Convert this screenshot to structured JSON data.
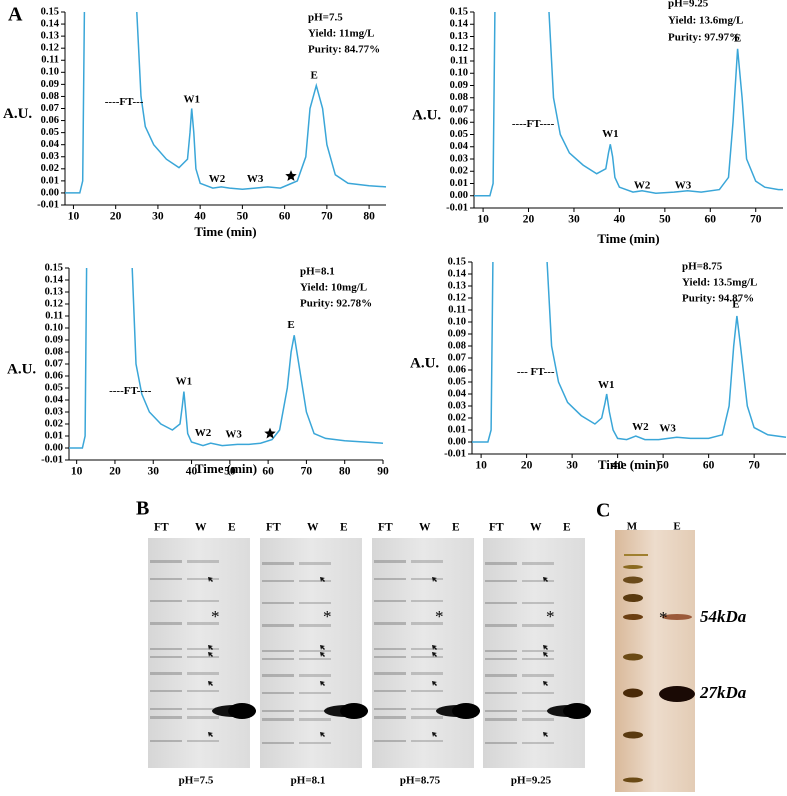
{
  "panel_A": {
    "label": "A"
  },
  "chart_data": [
    {
      "type": "line",
      "y_label": "A.U.",
      "x_label": "Time (min)",
      "info": [
        "pH=7.5",
        "Yield: 11mg/L",
        "Purity: 84.77%"
      ],
      "peak_labels": [
        "----FT---",
        "W1",
        "W2",
        "W3",
        "E"
      ],
      "xlim": [
        8,
        84
      ],
      "xticks": [
        10,
        20,
        30,
        40,
        50,
        60,
        70,
        80
      ],
      "ylim": [
        -0.01,
        0.15
      ],
      "yticks": [
        -0.01,
        {
          "value": 0,
          "label": "0.00"
        },
        0.01,
        0.02,
        0.03,
        0.04,
        0.05,
        0.06,
        0.07,
        0.08,
        0.09,
        {
          "value": 0.1,
          "label": "0.10"
        },
        0.11,
        0.12,
        0.13,
        0.14,
        0.15
      ],
      "x": [
        8,
        11.5,
        12.2,
        12.6,
        18,
        25,
        26,
        27,
        29,
        32,
        35,
        37,
        37.6,
        38,
        38.5,
        39,
        40,
        43,
        45,
        47,
        50,
        53,
        56,
        59,
        61,
        63,
        65,
        66,
        67.5,
        69,
        70,
        72,
        75,
        80,
        84
      ],
      "series": [
        {
          "color": "#3aa6d8",
          "values": [
            0,
            0,
            0.01,
            0.15,
            null,
            0.15,
            0.08,
            0.055,
            0.04,
            0.028,
            0.021,
            0.028,
            0.05,
            0.07,
            0.05,
            0.02,
            0.008,
            0.004,
            0.005,
            0.004,
            0.003,
            0.004,
            0.005,
            0.004,
            0.007,
            0.01,
            0.03,
            0.07,
            0.089,
            0.07,
            0.04,
            0.015,
            0.008,
            0.006,
            0.005
          ]
        }
      ]
    },
    {
      "type": "line",
      "y_label": "A.U.",
      "x_label": "Time (min)",
      "info": [
        "pH=9.25",
        "Yield: 13.6mg/L",
        "Purity: 97.97%"
      ],
      "peak_labels": [
        "----FT----",
        "W1",
        "W2",
        "W3",
        "E"
      ],
      "xlim": [
        8,
        76
      ],
      "xticks": [
        10,
        20,
        30,
        40,
        50,
        60,
        70
      ],
      "ylim": [
        -0.01,
        0.15
      ],
      "yticks": [
        -0.01,
        {
          "value": 0,
          "label": "0.00"
        },
        0.01,
        0.02,
        0.03,
        0.04,
        0.05,
        0.06,
        0.07,
        0.08,
        0.09,
        {
          "value": 0.1,
          "label": "0.10"
        },
        0.11,
        0.12,
        0.13,
        0.14,
        0.15
      ],
      "x": [
        8,
        11.5,
        12.2,
        12.6,
        18,
        24.5,
        25.5,
        27,
        29,
        32,
        35,
        37,
        37.6,
        38,
        38.5,
        39,
        40,
        43,
        45,
        48,
        52,
        55,
        58,
        62,
        64,
        65,
        66,
        67,
        68,
        70,
        72,
        75,
        76
      ],
      "series": [
        {
          "color": "#3aa6d8",
          "values": [
            0,
            0,
            0.01,
            0.15,
            null,
            0.15,
            0.08,
            0.05,
            0.035,
            0.025,
            0.018,
            0.022,
            0.035,
            0.042,
            0.032,
            0.015,
            0.007,
            0.003,
            0.004,
            0.002,
            0.003,
            0.004,
            0.003,
            0.005,
            0.015,
            0.06,
            0.12,
            0.08,
            0.03,
            0.012,
            0.007,
            0.005,
            0.005
          ]
        }
      ]
    },
    {
      "type": "line",
      "y_label": "A.U.",
      "x_label": "Time (min)",
      "info": [
        "pH=8.1",
        "Yield: 10mg/L",
        "Purity: 92.78%"
      ],
      "peak_labels": [
        "----FT----",
        "W1",
        "W2",
        "W3",
        "E"
      ],
      "xlim": [
        8,
        90
      ],
      "xticks": [
        10,
        20,
        30,
        40,
        50,
        60,
        70,
        80,
        90
      ],
      "ylim": [
        -0.01,
        0.15
      ],
      "yticks": [
        -0.01,
        {
          "value": 0,
          "label": "0.00"
        },
        0.01,
        0.02,
        0.03,
        0.04,
        0.05,
        0.06,
        0.07,
        0.08,
        0.09,
        {
          "value": 0.1,
          "label": "0.10"
        },
        0.11,
        0.12,
        0.13,
        0.14,
        0.15
      ],
      "x": [
        8,
        11.5,
        12.2,
        12.6,
        18,
        24.5,
        25.5,
        27,
        29,
        32,
        35,
        37,
        37.6,
        38,
        38.5,
        39,
        40,
        43,
        45,
        48,
        52,
        55,
        58,
        61,
        63,
        65,
        66,
        66.8,
        68,
        70,
        72,
        75,
        80,
        90
      ],
      "series": [
        {
          "color": "#3aa6d8",
          "values": [
            0,
            0,
            0.01,
            0.15,
            null,
            0.15,
            0.07,
            0.045,
            0.03,
            0.02,
            0.015,
            0.02,
            0.035,
            0.047,
            0.03,
            0.012,
            0.005,
            0.002,
            0.004,
            0.002,
            0.003,
            0.003,
            0.004,
            0.007,
            0.015,
            0.05,
            0.08,
            0.094,
            0.07,
            0.03,
            0.012,
            0.008,
            0.006,
            0.004
          ]
        }
      ]
    },
    {
      "type": "line",
      "y_label": "A.U.",
      "x_label": "Time (min)",
      "info": [
        "pH=8.75",
        "Yield: 13.5mg/L",
        "Purity: 94.87%"
      ],
      "peak_labels": [
        "--- FT---",
        "W1",
        "W2",
        "W3",
        "E"
      ],
      "xlim": [
        8,
        77
      ],
      "xticks": [
        10,
        20,
        30,
        40,
        50,
        60,
        70
      ],
      "ylim": [
        -0.01,
        0.15
      ],
      "yticks": [
        -0.01,
        {
          "value": 0,
          "label": "0.00"
        },
        0.01,
        0.02,
        0.03,
        0.04,
        0.05,
        0.06,
        0.07,
        0.08,
        0.09,
        {
          "value": 0.1,
          "label": "0.10"
        },
        0.11,
        0.12,
        0.13,
        0.14,
        0.15
      ],
      "x": [
        8,
        11.5,
        12.2,
        12.6,
        18,
        24.5,
        25.5,
        27,
        29,
        32,
        35,
        36.5,
        37.2,
        37.6,
        38.2,
        39,
        40,
        42,
        44,
        46,
        49,
        53,
        56,
        60,
        63,
        64.5,
        65.5,
        66.2,
        67,
        68.5,
        70,
        73,
        77
      ],
      "series": [
        {
          "color": "#3aa6d8",
          "values": [
            0,
            0,
            0.01,
            0.15,
            null,
            0.15,
            0.08,
            0.05,
            0.033,
            0.022,
            0.015,
            0.02,
            0.032,
            0.04,
            0.025,
            0.01,
            0.003,
            0.002,
            0.005,
            0.002,
            0.002,
            0.004,
            0.003,
            0.003,
            0.006,
            0.03,
            0.08,
            0.105,
            0.08,
            0.03,
            0.012,
            0.006,
            0.004
          ]
        }
      ]
    }
  ],
  "panel_B": {
    "label": "B",
    "lanes": [
      "FT",
      "W",
      "E"
    ],
    "gels": [
      "pH=7.5",
      "pH=8.1",
      "pH=8.75",
      "pH=9.25"
    ],
    "marker": "*"
  },
  "panel_C": {
    "label": "C",
    "lanes": [
      "M",
      "E"
    ],
    "markers": [
      "54kDa",
      "27kDa"
    ],
    "asterisk": "*"
  }
}
